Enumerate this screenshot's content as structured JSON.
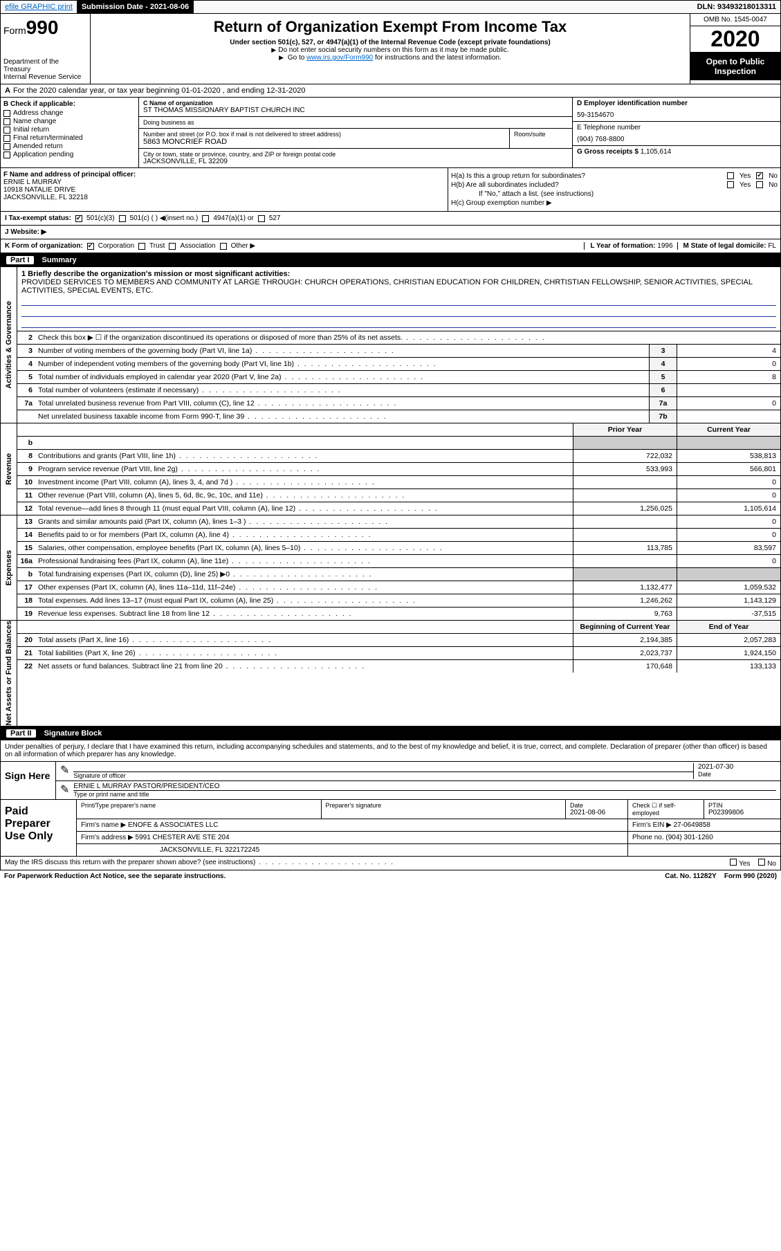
{
  "topbar": {
    "efile": "efile GRAPHIC print",
    "submission_label": "Submission Date - 2021-08-06",
    "dln": "DLN: 93493218013311"
  },
  "header": {
    "form_prefix": "Form",
    "form_number": "990",
    "dept": "Department of the Treasury\nInternal Revenue Service",
    "title": "Return of Organization Exempt From Income Tax",
    "sub1": "Under section 501(c), 527, or 4947(a)(1) of the Internal Revenue Code (except private foundations)",
    "sub2": "Do not enter social security numbers on this form as it may be made public.",
    "sub3_pre": "Go to ",
    "sub3_link": "www.irs.gov/Form990",
    "sub3_post": " for instructions and the latest information.",
    "omb": "OMB No. 1545-0047",
    "year": "2020",
    "open": "Open to Public Inspection"
  },
  "period": {
    "text": "For the 2020 calendar year, or tax year beginning 01-01-2020    , and ending 12-31-2020",
    "a_label": "A"
  },
  "section_b": {
    "title": "B Check if applicable:",
    "items": [
      "Address change",
      "Name change",
      "Initial return",
      "Final return/terminated",
      "Amended return",
      "Application pending"
    ]
  },
  "section_c": {
    "name_label": "C Name of organization",
    "name": "ST THOMAS MISSIONARY BAPTIST CHURCH INC",
    "dba_label": "Doing business as",
    "addr_label": "Number and street (or P.O. box if mail is not delivered to street address)",
    "addr": "5863 MONCRIEF ROAD",
    "room_label": "Room/suite",
    "city_label": "City or town, state or province, country, and ZIP or foreign postal code",
    "city": "JACKSONVILLE, FL  32209"
  },
  "section_d": {
    "label": "D Employer identification number",
    "value": "59-3154670"
  },
  "section_e": {
    "label": "E Telephone number",
    "value": "(904) 768-8800"
  },
  "section_g": {
    "label": "G Gross receipts $",
    "value": "1,105,614"
  },
  "section_f": {
    "label": "F  Name and address of principal officer:",
    "name": "ERNIE L MURRAY",
    "addr1": "10918 NATALIE DRIVE",
    "addr2": "JACKSONVILLE, FL  32218"
  },
  "section_h": {
    "a": "H(a)  Is this a group return for subordinates?",
    "b": "H(b)  Are all subordinates included?",
    "b_note": "If \"No,\" attach a list. (see instructions)",
    "c": "H(c)  Group exemption number ▶",
    "yes": "Yes",
    "no": "No"
  },
  "section_i": {
    "label": "I  Tax-exempt status:",
    "opts": [
      "501(c)(3)",
      "501(c) (  ) ◀(insert no.)",
      "4947(a)(1) or",
      "527"
    ]
  },
  "section_j": {
    "label": "J   Website: ▶"
  },
  "section_k": {
    "label": "K Form of organization:",
    "opts": [
      "Corporation",
      "Trust",
      "Association",
      "Other ▶"
    ]
  },
  "section_l": {
    "label": "L Year of formation:",
    "value": "1996"
  },
  "section_m": {
    "label": "M State of legal domicile:",
    "value": "FL"
  },
  "part1": {
    "num": "Part I",
    "title": "Summary"
  },
  "mission": {
    "label": "1  Briefly describe the organization's mission or most significant activities:",
    "text": "PROVIDED SERVICES TO MEMBERS AND COMMUNITY AT LARGE THROUGH: CHURCH OPERATIONS, CHRISTIAN EDUCATION FOR CHILDREN, CHRTISTIAN FELLOWSHIP, SENIOR ACTIVITIES, SPECIAL ACTIVITIES, SPECIAL EVENTS, ETC."
  },
  "governance": {
    "side": "Activities & Governance",
    "rows": [
      {
        "n": "2",
        "t": "Check this box ▶ ☐ if the organization discontinued its operations or disposed of more than 25% of its net assets."
      },
      {
        "n": "3",
        "t": "Number of voting members of the governing body (Part VI, line 1a)",
        "box": "3",
        "v": "4"
      },
      {
        "n": "4",
        "t": "Number of independent voting members of the governing body (Part VI, line 1b)",
        "box": "4",
        "v": "0"
      },
      {
        "n": "5",
        "t": "Total number of individuals employed in calendar year 2020 (Part V, line 2a)",
        "box": "5",
        "v": "8"
      },
      {
        "n": "6",
        "t": "Total number of volunteers (estimate if necessary)",
        "box": "6",
        "v": ""
      },
      {
        "n": "7a",
        "t": "Total unrelated business revenue from Part VIII, column (C), line 12",
        "box": "7a",
        "v": "0"
      },
      {
        "n": "",
        "t": "Net unrelated business taxable income from Form 990-T, line 39",
        "box": "7b",
        "v": ""
      }
    ]
  },
  "prior_current_header": {
    "prior": "Prior Year",
    "current": "Current Year"
  },
  "revenue": {
    "side": "Revenue",
    "rows": [
      {
        "n": "b",
        "t": "",
        "p": "",
        "c": "",
        "shade": true
      },
      {
        "n": "8",
        "t": "Contributions and grants (Part VIII, line 1h)",
        "p": "722,032",
        "c": "538,813"
      },
      {
        "n": "9",
        "t": "Program service revenue (Part VIII, line 2g)",
        "p": "533,993",
        "c": "566,801"
      },
      {
        "n": "10",
        "t": "Investment income (Part VIII, column (A), lines 3, 4, and 7d )",
        "p": "",
        "c": "0"
      },
      {
        "n": "11",
        "t": "Other revenue (Part VIII, column (A), lines 5, 6d, 8c, 9c, 10c, and 11e)",
        "p": "",
        "c": "0"
      },
      {
        "n": "12",
        "t": "Total revenue—add lines 8 through 11 (must equal Part VIII, column (A), line 12)",
        "p": "1,256,025",
        "c": "1,105,614"
      }
    ]
  },
  "expenses": {
    "side": "Expenses",
    "rows": [
      {
        "n": "13",
        "t": "Grants and similar amounts paid (Part IX, column (A), lines 1–3 )",
        "p": "",
        "c": "0"
      },
      {
        "n": "14",
        "t": "Benefits paid to or for members (Part IX, column (A), line 4)",
        "p": "",
        "c": "0"
      },
      {
        "n": "15",
        "t": "Salaries, other compensation, employee benefits (Part IX, column (A), lines 5–10)",
        "p": "113,785",
        "c": "83,597"
      },
      {
        "n": "16a",
        "t": "Professional fundraising fees (Part IX, column (A), line 11e)",
        "p": "",
        "c": "0"
      },
      {
        "n": "b",
        "t": "Total fundraising expenses (Part IX, column (D), line 25) ▶0",
        "p": "",
        "c": "",
        "shade": true
      },
      {
        "n": "17",
        "t": "Other expenses (Part IX, column (A), lines 11a–11d, 11f–24e)",
        "p": "1,132,477",
        "c": "1,059,532"
      },
      {
        "n": "18",
        "t": "Total expenses. Add lines 13–17 (must equal Part IX, column (A), line 25)",
        "p": "1,246,262",
        "c": "1,143,129"
      },
      {
        "n": "19",
        "t": "Revenue less expenses. Subtract line 18 from line 12",
        "p": "9,763",
        "c": "-37,515"
      }
    ]
  },
  "net_header": {
    "begin": "Beginning of Current Year",
    "end": "End of Year"
  },
  "netassets": {
    "side": "Net Assets or Fund Balances",
    "rows": [
      {
        "n": "20",
        "t": "Total assets (Part X, line 16)",
        "p": "2,194,385",
        "c": "2,057,283"
      },
      {
        "n": "21",
        "t": "Total liabilities (Part X, line 26)",
        "p": "2,023,737",
        "c": "1,924,150"
      },
      {
        "n": "22",
        "t": "Net assets or fund balances. Subtract line 21 from line 20",
        "p": "170,648",
        "c": "133,133"
      }
    ]
  },
  "part2": {
    "num": "Part II",
    "title": "Signature Block"
  },
  "penalties": "Under penalties of perjury, I declare that I have examined this return, including accompanying schedules and statements, and to the best of my knowledge and belief, it is true, correct, and complete. Declaration of preparer (other than officer) is based on all information of which preparer has any knowledge.",
  "sign": {
    "label": "Sign Here",
    "sig_label": "Signature of officer",
    "date_label": "Date",
    "date": "2021-07-30",
    "name": "ERNIE L MURRAY PASTOR/PRESIDENT/CEO",
    "name_label": "Type or print name and title"
  },
  "paid": {
    "label": "Paid Preparer Use Only",
    "h1": "Print/Type preparer's name",
    "h2": "Preparer's signature",
    "h3": "Date",
    "h3v": "2021-08-06",
    "h4": "Check ☐ if self-employed",
    "h5": "PTIN",
    "h5v": "P02399806",
    "firm_name_label": "Firm's name    ▶",
    "firm_name": "ENOFE & ASSOCIATES LLC",
    "firm_ein_label": "Firm's EIN ▶",
    "firm_ein": "27-0649858",
    "firm_addr_label": "Firm's address ▶",
    "firm_addr1": "5991 CHESTER AVE STE 204",
    "firm_addr2": "JACKSONVILLE, FL  322172245",
    "phone_label": "Phone no.",
    "phone": "(904) 301-1260"
  },
  "discuss": {
    "text": "May the IRS discuss this return with the preparer shown above? (see instructions)",
    "yes": "Yes",
    "no": "No"
  },
  "footer": {
    "left": "For Paperwork Reduction Act Notice, see the separate instructions.",
    "mid": "Cat. No. 11282Y",
    "right": "Form 990 (2020)"
  },
  "colors": {
    "link": "#0066cc",
    "rule": "#2233aa"
  }
}
